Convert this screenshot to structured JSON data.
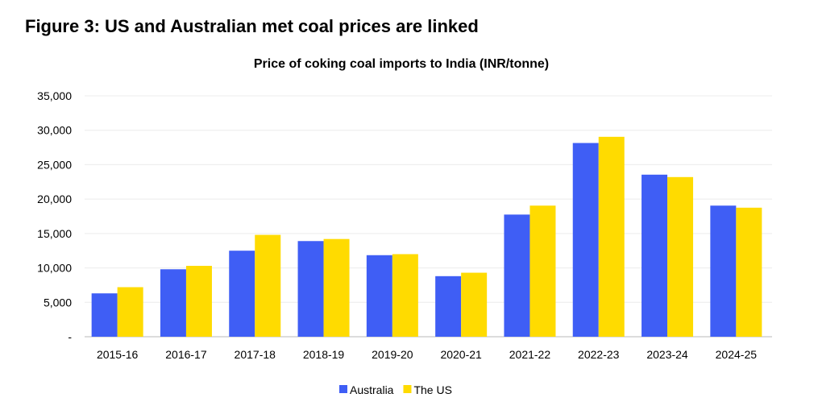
{
  "figure_title": "Figure 3: US and Australian met coal prices are linked",
  "chart_data": {
    "type": "bar",
    "title": "Price of coking coal imports to India (INR/tonne)",
    "xlabel": "",
    "ylabel": "",
    "categories": [
      "2015-16",
      "2016-17",
      "2017-18",
      "2018-19",
      "2019-20",
      "2020-21",
      "2021-22",
      "2022-23",
      "2023-24",
      "2024-25"
    ],
    "series": [
      {
        "name": "Australia",
        "color": "#3F5EF5",
        "values": [
          6300,
          9800,
          12500,
          13900,
          11850,
          8800,
          17750,
          28150,
          23550,
          19050
        ]
      },
      {
        "name": "The US",
        "color": "#FFDB00",
        "values": [
          7200,
          10300,
          14800,
          14200,
          12000,
          9300,
          19050,
          29050,
          23200,
          18750
        ]
      }
    ],
    "ylim": [
      0,
      35000
    ],
    "yticks": [
      0,
      5000,
      10000,
      15000,
      20000,
      25000,
      30000,
      35000
    ],
    "ytick_labels": [
      "-",
      "5,000",
      "10,000",
      "15,000",
      "20,000",
      "25,000",
      "30,000",
      "35,000"
    ],
    "grid": true,
    "legend_position": "bottom"
  }
}
